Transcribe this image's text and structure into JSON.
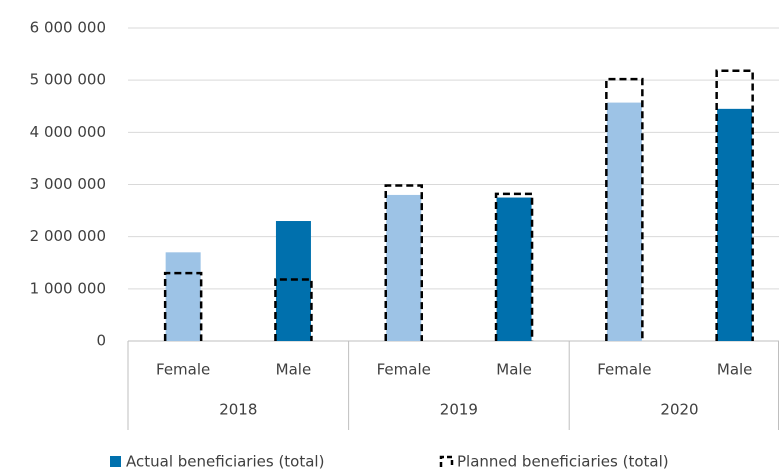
{
  "chart_data": {
    "type": "bar",
    "categories": [
      "Female",
      "Male",
      "Female",
      "Male",
      "Female",
      "Male"
    ],
    "groups": [
      "2018",
      "2019",
      "2020"
    ],
    "series": [
      {
        "name": "Actual beneficiaries (total)",
        "color": "#0070ad",
        "colors": [
          "#9dc3e6",
          "#0070ad",
          "#9dc3e6",
          "#0070ad",
          "#9dc3e6",
          "#0070ad"
        ],
        "values": [
          1700000,
          2300000,
          2800000,
          2750000,
          4570000,
          4450000
        ]
      },
      {
        "name": "Planned beneficiaries (total)",
        "color": "#000000",
        "style": "dashed-outline",
        "values": [
          1300000,
          1180000,
          2980000,
          2820000,
          5020000,
          5180000
        ]
      }
    ],
    "ylim": [
      0,
      6000000
    ],
    "yticks": [
      0,
      {
        "value": 1000000,
        "label": "1 000 000"
      },
      {
        "value": 2000000,
        "label": "2 000 000"
      },
      {
        "value": 3000000,
        "label": "3 000 000"
      },
      {
        "value": 4000000,
        "label": "4 000 000"
      },
      {
        "value": 5000000,
        "label": "5 000 000"
      },
      {
        "value": 6000000,
        "label": "6 000 000"
      }
    ],
    "grid": true
  }
}
